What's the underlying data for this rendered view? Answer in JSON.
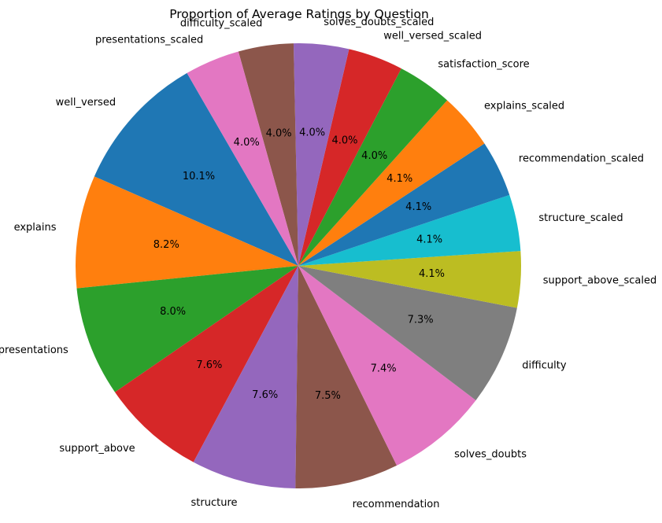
{
  "chart_data": {
    "type": "pie",
    "title": "Proportion of Average Ratings by Question",
    "start_angle_deg": 120,
    "direction": "counterclockwise",
    "slices": [
      {
        "label": "well_versed",
        "value": 10.1,
        "pct_label": "10.1%",
        "color": "#1f77b4"
      },
      {
        "label": "explains",
        "value": 8.2,
        "pct_label": "8.2%",
        "color": "#ff7f0e"
      },
      {
        "label": "presentations",
        "value": 8.0,
        "pct_label": "8.0%",
        "color": "#2ca02c"
      },
      {
        "label": "support_above",
        "value": 7.6,
        "pct_label": "7.6%",
        "color": "#d62728"
      },
      {
        "label": "structure",
        "value": 7.6,
        "pct_label": "7.6%",
        "color": "#9467bd"
      },
      {
        "label": "recommendation",
        "value": 7.5,
        "pct_label": "7.5%",
        "color": "#8c564b"
      },
      {
        "label": "solves_doubts",
        "value": 7.4,
        "pct_label": "7.4%",
        "color": "#e377c2"
      },
      {
        "label": "difficulty",
        "value": 7.3,
        "pct_label": "7.3%",
        "color": "#7f7f7f"
      },
      {
        "label": "support_above_scaled",
        "value": 4.1,
        "pct_label": "4.1%",
        "color": "#bcbd22"
      },
      {
        "label": "structure_scaled",
        "value": 4.1,
        "pct_label": "4.1%",
        "color": "#17becf"
      },
      {
        "label": "recommendation_scaled",
        "value": 4.1,
        "pct_label": "4.1%",
        "color": "#1f77b4"
      },
      {
        "label": "explains_scaled",
        "value": 4.1,
        "pct_label": "4.1%",
        "color": "#ff7f0e"
      },
      {
        "label": "satisfaction_score",
        "value": 4.0,
        "pct_label": "4.0%",
        "color": "#2ca02c"
      },
      {
        "label": "well_versed_scaled",
        "value": 4.0,
        "pct_label": "4.0%",
        "color": "#d62728"
      },
      {
        "label": "solves_doubts_scaled",
        "value": 4.0,
        "pct_label": "4.0%",
        "color": "#9467bd"
      },
      {
        "label": "difficulty_scaled",
        "value": 4.0,
        "pct_label": "4.0%",
        "color": "#8c564b"
      },
      {
        "label": "presentations_scaled",
        "value": 4.0,
        "pct_label": "4.0%",
        "color": "#e377c2"
      }
    ]
  }
}
